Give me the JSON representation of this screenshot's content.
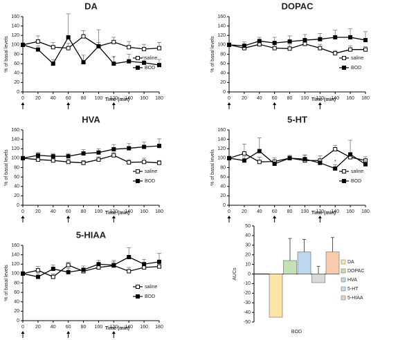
{
  "chart_data": [
    {
      "type": "line",
      "title": "DA",
      "x_label": "Time (min)",
      "y_label": "% of basal levels",
      "x": [
        0,
        20,
        40,
        60,
        80,
        100,
        120,
        140,
        160,
        180
      ],
      "xlim": [
        0,
        180
      ],
      "xticks": [
        0,
        20,
        40,
        60,
        80,
        100,
        120,
        140,
        160,
        180
      ],
      "ylim": [
        0,
        160
      ],
      "yticks": [
        0,
        20,
        40,
        60,
        80,
        100,
        120,
        140,
        160
      ],
      "arrows": [
        0,
        60,
        120
      ],
      "annotations": [
        {
          "text": "*",
          "x": 120,
          "y": 72
        }
      ],
      "series": [
        {
          "name": "saline",
          "color": "#000000",
          "marker_fill": "#ffffff",
          "values": [
            100,
            107,
            95,
            93,
            118,
            97,
            106,
            95,
            91,
            93
          ],
          "errors": [
            0,
            12,
            10,
            10,
            12,
            35,
            10,
            12,
            10,
            12
          ]
        },
        {
          "name": "BOD",
          "color": "#000000",
          "marker_fill": "#000000",
          "values": [
            100,
            90,
            60,
            116,
            63,
            97,
            60,
            65,
            62,
            57
          ],
          "errors": [
            0,
            8,
            8,
            50,
            15,
            8,
            15,
            15,
            12,
            12
          ]
        }
      ]
    },
    {
      "type": "line",
      "title": "DOPAC",
      "x_label": "Time (min)",
      "y_label": "% of basal levels",
      "x": [
        0,
        20,
        40,
        60,
        80,
        100,
        120,
        140,
        160,
        180
      ],
      "xlim": [
        0,
        180
      ],
      "xticks": [
        0,
        20,
        40,
        60,
        80,
        100,
        120,
        140,
        160,
        180
      ],
      "ylim": [
        0,
        160
      ],
      "yticks": [
        0,
        20,
        40,
        60,
        80,
        100,
        120,
        140,
        160
      ],
      "arrows": [
        0,
        60,
        120
      ],
      "annotations": [],
      "series": [
        {
          "name": "saline",
          "color": "#000000",
          "marker_fill": "#ffffff",
          "values": [
            100,
            93,
            101,
            93,
            92,
            102,
            93,
            82,
            90,
            90
          ],
          "errors": [
            0,
            8,
            8,
            8,
            8,
            8,
            8,
            6,
            8,
            6
          ]
        },
        {
          "name": "BOD",
          "color": "#000000",
          "marker_fill": "#000000",
          "values": [
            100,
            98,
            108,
            104,
            107,
            110,
            112,
            116,
            116,
            110
          ],
          "errors": [
            0,
            8,
            8,
            12,
            12,
            12,
            12,
            15,
            18,
            18
          ]
        }
      ]
    },
    {
      "type": "line",
      "title": "HVA",
      "x_label": "Time (min)",
      "y_label": "% of basal levels",
      "x": [
        0,
        20,
        40,
        60,
        80,
        100,
        120,
        140,
        160,
        180
      ],
      "xlim": [
        0,
        180
      ],
      "xticks": [
        0,
        20,
        40,
        60,
        80,
        100,
        120,
        140,
        160,
        180
      ],
      "ylim": [
        0,
        160
      ],
      "yticks": [
        0,
        20,
        40,
        60,
        80,
        100,
        120,
        140,
        160
      ],
      "arrows": [
        0,
        60,
        120
      ],
      "annotations": [],
      "series": [
        {
          "name": "saline",
          "color": "#000000",
          "marker_fill": "#ffffff",
          "values": [
            100,
            97,
            95,
            92,
            90,
            97,
            106,
            91,
            92,
            90
          ],
          "errors": [
            0,
            6,
            6,
            6,
            5,
            6,
            6,
            6,
            8,
            5
          ]
        },
        {
          "name": "BOD",
          "color": "#000000",
          "marker_fill": "#000000",
          "values": [
            100,
            106,
            104,
            104,
            110,
            112,
            119,
            121,
            124,
            126
          ],
          "errors": [
            0,
            6,
            6,
            6,
            8,
            8,
            10,
            10,
            10,
            15
          ]
        }
      ]
    },
    {
      "type": "line",
      "title": "5-HT",
      "x_label": "Time (min)",
      "y_label": "% of basal levels",
      "x": [
        0,
        20,
        40,
        60,
        80,
        100,
        120,
        140,
        160,
        180
      ],
      "xlim": [
        0,
        180
      ],
      "xticks": [
        0,
        20,
        40,
        60,
        80,
        100,
        120,
        140,
        160,
        180
      ],
      "ylim": [
        0,
        160
      ],
      "yticks": [
        0,
        20,
        40,
        60,
        80,
        100,
        120,
        140,
        160
      ],
      "arrows": [
        0,
        60,
        120
      ],
      "annotations": [
        {
          "text": "*",
          "x": 140,
          "y": 92
        }
      ],
      "series": [
        {
          "name": "saline",
          "color": "#000000",
          "marker_fill": "#ffffff",
          "values": [
            100,
            110,
            92,
            93,
            100,
            95,
            95,
            119,
            102,
            95
          ],
          "errors": [
            0,
            20,
            10,
            8,
            6,
            12,
            10,
            8,
            8,
            8
          ]
        },
        {
          "name": "BOD",
          "color": "#000000",
          "marker_fill": "#000000",
          "values": [
            100,
            95,
            115,
            88,
            100,
            98,
            90,
            78,
            108,
            87
          ],
          "errors": [
            0,
            8,
            28,
            8,
            6,
            8,
            8,
            8,
            30,
            8
          ]
        }
      ]
    },
    {
      "type": "line",
      "title": "5-HIAA",
      "x_label": "Time (min)",
      "y_label": "% of basal levels",
      "x": [
        0,
        20,
        40,
        60,
        80,
        100,
        120,
        140,
        160,
        180
      ],
      "xlim": [
        0,
        180
      ],
      "xticks": [
        0,
        20,
        40,
        60,
        80,
        100,
        120,
        140,
        160,
        180
      ],
      "ylim": [
        0,
        160
      ],
      "yticks": [
        0,
        20,
        40,
        60,
        80,
        100,
        120,
        140,
        160
      ],
      "arrows": [
        0,
        60,
        120
      ],
      "annotations": [],
      "series": [
        {
          "name": "saline",
          "color": "#000000",
          "marker_fill": "#ffffff",
          "values": [
            100,
            107,
            93,
            118,
            105,
            113,
            117,
            105,
            113,
            115
          ],
          "errors": [
            0,
            8,
            6,
            6,
            6,
            8,
            8,
            8,
            8,
            8
          ]
        },
        {
          "name": "BOD",
          "color": "#000000",
          "marker_fill": "#000000",
          "values": [
            100,
            93,
            110,
            103,
            108,
            120,
            118,
            135,
            120,
            125
          ],
          "errors": [
            0,
            8,
            8,
            8,
            8,
            8,
            10,
            20,
            10,
            18
          ]
        }
      ]
    },
    {
      "type": "bar",
      "x_label": "BOD",
      "y_label": "AUCs",
      "categories": [
        "DA",
        "DOPAC",
        "HVA",
        "5-HT",
        "5-HIAA"
      ],
      "values": [
        -45,
        14,
        23,
        -9,
        23
      ],
      "errors": [
        38,
        23,
        13,
        17,
        15
      ],
      "colors": [
        "#fbe5a6",
        "#c5e0b4",
        "#bdd7ee",
        "#d9d9d9",
        "#f8cbad"
      ],
      "ylim": [
        -50,
        50
      ],
      "yticks": [
        -50,
        -40,
        -30,
        -20,
        -10,
        0,
        10,
        20,
        30,
        40,
        50
      ]
    }
  ]
}
